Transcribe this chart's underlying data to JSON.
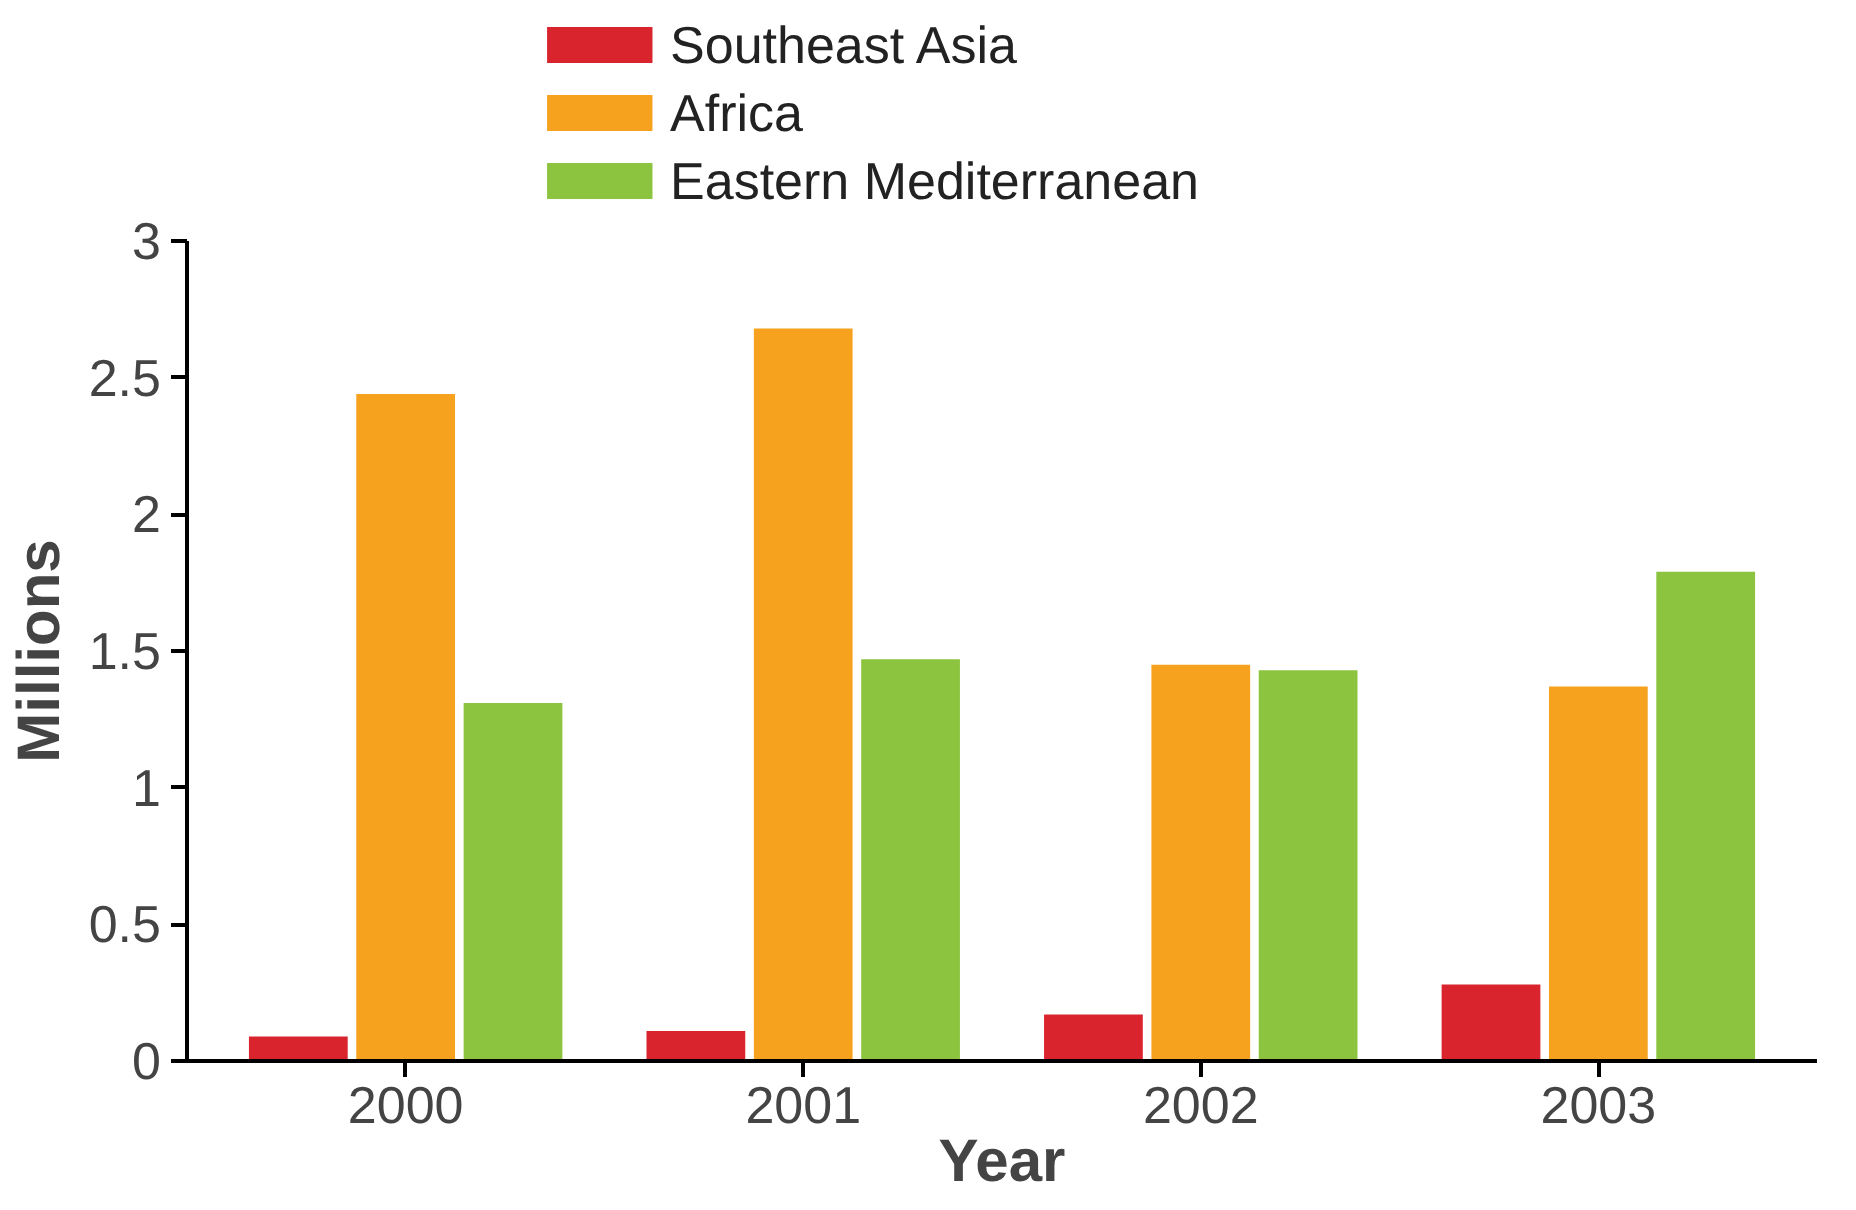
{
  "chart_data": {
    "type": "bar",
    "xlabel": "Year",
    "ylabel": "Millions",
    "categories": [
      "2000",
      "2001",
      "2002",
      "2003"
    ],
    "series": [
      {
        "name": "Southeast Asia",
        "color": "#d9242e",
        "values": [
          0.09,
          0.11,
          0.17,
          0.28
        ]
      },
      {
        "name": "Africa",
        "color": "#f6a21e",
        "values": [
          2.44,
          2.68,
          1.45,
          1.37
        ]
      },
      {
        "name": "Eastern Mediterranean",
        "color": "#8cc43f",
        "values": [
          1.31,
          1.47,
          1.43,
          1.79
        ]
      }
    ],
    "ylim": [
      0,
      3
    ],
    "yticks": [
      0,
      {
        "value": 0.5,
        "label": "0.5"
      },
      1,
      {
        "value": 1.5,
        "label": "1.5"
      },
      2,
      {
        "value": 2.5,
        "label": "2.5"
      },
      3
    ],
    "grid": false,
    "legend": "top left"
  }
}
